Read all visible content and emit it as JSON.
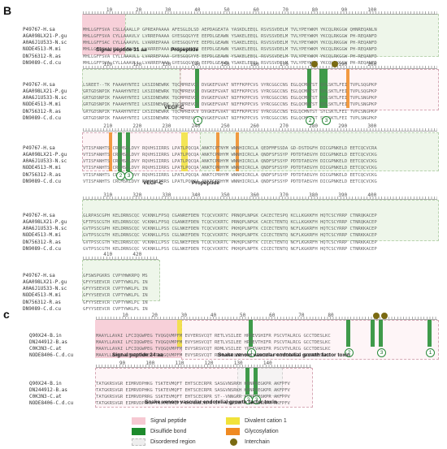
{
  "panels": [
    {
      "letter": "B"
    },
    {
      "letter": "c"
    }
  ],
  "b_ids": [
    "P49767-H.sa",
    "AGA098LX21-P.gu",
    "A0A6J1U533-N.sc",
    "NODE4513-M.mi",
    "DN756312-R.as",
    "DN9089-C.d.cu"
  ],
  "b_rows": [
    {
      "ruler": "        10        20        30        40        50        60        70        80        90       100",
      "seqs": [
        "MHLLGFFSVA CSLLAAALLP GPREAPAAAA AFESGLDLSD AEPDAGEATA YASKDLEEQL RSVSSVDELM TVLYPEYWKM YKCQLRKGGW QHNREQANLN",
        "MHLLGFFSVA CYLLAAAVLV LVRREPAAAA GYESGQGYYE EEPDLGEAWN YSAKELEEQL RSVSSVDELM TVLYPEYWKM YKCQLRKGGW PH-REQANFD",
        "MHLLGFFSAC CYLLAAAVVL LVARREPAAA GYESGQGYYE EEPDLGEAWN YSAKELEEQL RSVSSVDELM TVLYPEYWKM YKCQLRKGGW PH-REQANFD",
        "MHLLGFFSVA CYLLAAAVLL LVARREPAAA GYESGQGYYE EEPDLGEAWN YSAKELEEQL RSVSSVDELM TVLYPEYWKM YKCQLRKGGW PH-REQANFD",
        "MHLLGFFSVA CYLLAAAVLL LVARREPAAA GYESGQGYYE EEPDLGEAWN YSAKELEEQL RSVSSVDELM TVLYPEYWKM YKCQLRKGGW PH-REQANFD",
        "MHLLGFFSVA CYLLAAAVLL LVARREPAAA GYESGQGYYE EEPDLGEAWN YSAKELEEQL RSVSSVDELM TVLYPEYWKM YKCQLRKGGW PH-REQANFD"
      ]
    },
    {
      "ruler": "       110       120       130       140       150       160       170       180       190       200",
      "seqs": [
        "LSREET--TK FAAAHYNTEI LKSIDNEWRK TQCMPREVCI DVGKEFGVAT NTFFKPPCVS VYRCGGCCNS EGLQCMNTST SYLSKTLFEI TVPLSQGPKP",
        "GRTGDSNPIK FAAAHYNTEI LKSIDNEWRK TQCMPREVCV DVGKEFGVAT NIFFKPPCVS VYRCGGCCNS EGLQCMNTST SYLSKTLFEI TVPLSQGPKP",
        "GRTGDSNPIK FAAAHYNTEI LKSIDNEWRK TQCMPREVCV DVGKEFGVAT NIFFKPPCVS VYRCGGCCNS EGLQCMNTST SYLSKTLFEI TVPLSNGPKP",
        "GRTGDSNPIK FAAAHYNTEI LKSIDNEWRK TQCMPREVCV DVGKEFGVAT NIFFKPPCVS VYRCGGCCNS EGLQCMNTST SYLSKTLFEI TVPLSNGPKP",
        "GRTGDSNPIK FAAAHYNTEI LKSIDNEWRK TQCMPREVCV DVGKEFGVAT NIFFKPPCVS VYRCGGCCNS EGLQCMNTST SYLSKTLFEI TVPLSNGPKP",
        "GRTGDSNPIK FAAAHYNTEI LKSIDNEWRK TQCMPREVCV DVGKEFGVAT NIFFKPPCVS VYRCGGCCNS EGLQCMNTST SYLSKTLFEI TVPLSNGPKP"
      ]
    },
    {
      "ruler": "       210       220       230       240       250       260       270       280       290       300",
      "seqs": [
        "VTISFANHTS CRCMSKLDVY RQVHSIIRRS LPATLPQCQA ANKTCPTNYM WNNHICRCLA QEDFMFSSDA GD-DSTDGFH DICGPNKELD EETCQCVCRA",
        "VTISFANHTS CRCMSKLDVY RQVHSIIRRS LPATLPQCQA ANKTCPRHYM WNNHICRCLA QNDFSFSSYP PDTDTAEGYH DICGPNKELD EETCQCVCKG",
        "VTISFANHTS CRCMSKLDVY RQVHSIIRRS LPATLPQCQA ANKTCPRHYM WNNHICRCLA QNDFSFSSYP PDTDTAEGYH DICGPNKELD EETCQCVCKG",
        "VTISFANHTS CRCMSKLDVY RQVHSIIRRS LPATLPQCQA ANKTCPRHYM WNNHICRCLA QNDFSFSSYP PDTDTAEGYH DICGPNKELD EETCQCVCKG",
        "VTISFANHTS CRCMSKLDVY RQVHSIIRRS LPATLPQCQA ANKTCPRHYM WNNHICRCLA QNDFSFSSYP PDTDTAEGYH DICGPNKELD EETCQCVCKG",
        "VTISFANHTS CRCMSKLDVY RQVHSIIRRS LPATLPQCQA ANKTCPRHYM WNNHICRCLA QNDFSFSSYP PDTDTAEGYH DICGPNKELD EETCQCVCKG"
      ]
    },
    {
      "ruler": "       310       320       330       340       350       360       370       380       390       400",
      "seqs": [
        "GLRPASCGPH KELDRNSCQC VCKNKLFPSQ CGANREFDEN TCQCVCKRTC PRNQPLNPGK CACECTESPQ KCLLKGKKFH HQTCSCYRRP CTNRQKACEP",
        "GFTPSSCGTH KELDRNSCQC VCKNKLFPSQ CGANKEFDEN TCQCVCKRTC PRNQPLNPGK CACECTENTQ KCLLKGKKFH HQTCSCYRRP CTNRQKACEP",
        "GVTPSSCGPH KELDRNSCQC VCKNKLLPSS CGLNKEFDEN TCQCVCKRTC PKHQPLNPTK CICECTENTQ NCFLKGKRFH HQTCSCYRRP CTNRKKACEP",
        "GVTPSSCGTH KELDRNSCQC VCKNKLLPSS CGLNKEFDEN TCQCVCKRTC PKHQPLNPTK CICECTENTQ NCFLKGKRFH HQTCSCYRRP CTNRKKACEP",
        "GVTPSSCGTH KELDRNSCQC VCKNKLLPSS CGLNKEFDEN TCQCVCKRTC PKHQPLNPTK CICECTENTQ NCFLKGKRFH HQTCSCYRRP CTNRKKACEP",
        "GVTPSSCGTH KELDRNSCQC VCKNKLLPSS CGLNKEFDEN TCQCVCKRTC PKHQPLNPTK CICECTENTQ NCFLKGKRFH HQTCSCYRRP CTNRKKACEP"
      ]
    },
    {
      "ruler": "       410       420",
      "seqs": [
        "GFSWSPGKRS CVPYHWKRPQ MS",
        "GFYYSEEVCR CVPTYWKLPL IN",
        "GFYYSEEVCR CVPTYWKLPL IN",
        "GFYYSEEVCR CVPTYWKLPL IN",
        "GFYYSEEVCR CVPTYWKLPL IN",
        "GFYYSEEVCR CVPTYWKLPL IN"
      ]
    }
  ],
  "c_ids": [
    "Q90X24-B.in",
    "DN244912-B.as",
    "C0K3N3-C.at",
    "NODE8406-C.d.cu"
  ],
  "c_rows": [
    {
      "ruler": "         10        20        30        40        50        60        70        80",
      "seqs": [
        "MAAYLLAVAI LFCIQGWPEG TVQGQVMPFM EVYERSVCQT RETLVSILEE HPDEVSHIFR PSCVTALRCG GCCTDESLKC",
        "MAAYLLAVAI LFCIQGWPEG TVQGQVMPFM EVYSHSVCQT RETLVSILEE HPDEVTHIFR PSCVTALRCG GCCTDESLKC",
        "MAAYLLAVAI LFCIQGWPEG TVQGQVMPFM EVYSRSVCQT RDMLVSILEE YPSEVAHIFR PSCVTVLRCG GCCTDESLKC",
        "MAAYLLAVAI LFCIQGWPEG TVQGQVMPFM EVYSRSVCQT RDMLVSILEE YPSEVAHIFR PSCVTVLRCG GCCTDESLKC"
      ]
    },
    {
      "ruler": "        90       100       110       120       130       140",
      "seqs": [
        "TATGKRSVGR EIMRVDPHKG TSKTEVMQFT EHTSCECRPR SASGVNSRKH KKNPKEGKPR AKFPFV",
        "TATGKRSVGR EIMRVDPHKG TSKTEVMQFT EHTSCECRPR SASGVNSRKH KKNPKEGKPR AKFPFV",
        "TATGKRSVGR EIMRVDPRRG SSKTEVMQFT EHTSCECRPR ST--VNNGKR KKNPKEGKPR AKFPPV",
        "TATGKRSVGR EIMRVDPHKG TSKTEVMQFT EHTSCECRPR ST--VNNGKR KKNPKEGKPR AKFPFV"
      ]
    }
  ],
  "labels": {
    "b_signal": "Signal peptide 31 aa",
    "b_propeptide1": "Propeptide",
    "b_vegfc1": "VEGF-C",
    "b_vegfc2": "VEGF-C",
    "b_propeptide2": "Propeptide",
    "c_signal": "Signal peptide 24 aa",
    "c_svvegf1": "Snake venom vascular endotelial growth factor toxin",
    "c_svvegf2": "Snake venom vascular endotelial growth factor toxin"
  },
  "bond_numbers": {
    "b_row2": [
      "1",
      "2",
      "3"
    ],
    "b_row3": [
      "2",
      "3"
    ],
    "c_row1": [
      "1",
      "2",
      "3",
      "1"
    ],
    "c_row2": [
      "2",
      "3"
    ]
  },
  "legend": [
    {
      "label": "Signal peptide",
      "color": "#f6c8d2",
      "kind": "box"
    },
    {
      "label": "Disulfide bond",
      "color": "#1d8a2c",
      "kind": "box"
    },
    {
      "label": "Disordered region",
      "color": "#eeeeee",
      "kind": "dashed"
    },
    {
      "label": "Divalent cation 1",
      "color": "#f1e23a",
      "kind": "box"
    },
    {
      "label": "Glycosylation",
      "color": "#f08a22",
      "kind": "box"
    },
    {
      "label": "Interchain",
      "color": "#7a6a12",
      "kind": "dot"
    }
  ]
}
